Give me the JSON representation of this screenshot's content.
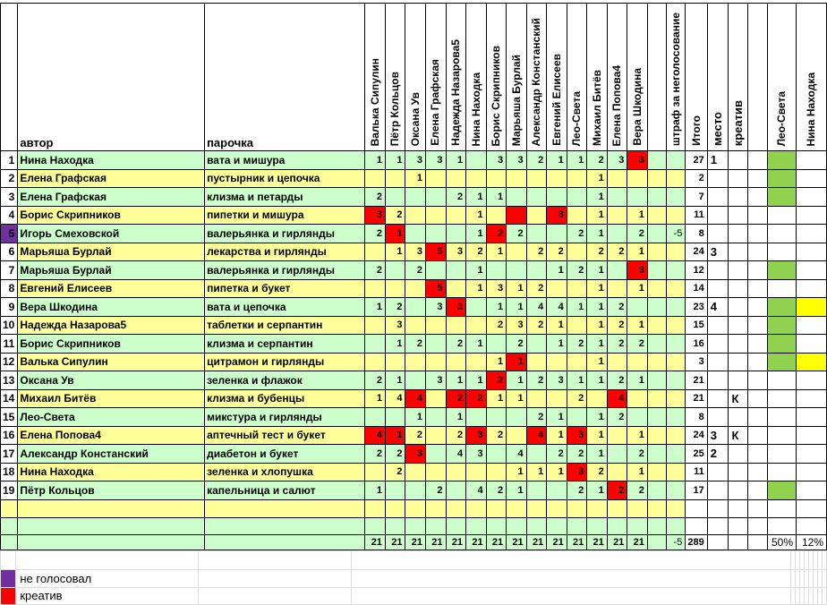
{
  "header": {
    "author_label": "автор",
    "pair_label": "парочка",
    "voters": [
      "Валька Сипулин",
      "Пётр Кольцов",
      "Оксана Ув",
      "Елена Графская",
      "Надежда Назарова5",
      "Нина Находка",
      "Борис Скрипников",
      "Марьяша Бурлай",
      "Александр Констанский",
      "Евгений Елисеев",
      "Лео-Света",
      "Михаил Битёв",
      "Елена Попова4",
      "Вера Шкодина"
    ],
    "penalty_label": "штраф за неголосование",
    "total_label": "Итого",
    "place_label": "место",
    "creative_label": "креатив",
    "leo_col_label": "Лео-Света",
    "nina_col_label": "Нина Находка"
  },
  "rows": [
    {
      "num": "1",
      "author": "Нина Находка",
      "pair": "вата и мишура",
      "votes": [
        "1",
        "1",
        "3",
        "3",
        "1",
        "",
        "3",
        "3",
        "2",
        "1",
        "1",
        "2",
        "3",
        "3"
      ],
      "red": [
        14
      ],
      "penalty": "",
      "total": "27",
      "place": "1",
      "creative": "",
      "leo": true,
      "nina": false,
      "num_purple": false
    },
    {
      "num": "2",
      "author": "Елена Графская",
      "pair": "пустырник и цепочка",
      "votes": [
        "",
        "",
        "1",
        "",
        "",
        "",
        "",
        "",
        "",
        "",
        "",
        "1",
        "",
        ""
      ],
      "red": [],
      "penalty": "",
      "total": "2",
      "place": "",
      "creative": "",
      "leo": true,
      "nina": false,
      "num_purple": false
    },
    {
      "num": "3",
      "author": "Елена Графская",
      "pair": "клизма и петарды",
      "votes": [
        "2",
        "",
        "",
        "",
        "2",
        "1",
        "1",
        "",
        "",
        "",
        "",
        "1",
        "",
        ""
      ],
      "red": [],
      "penalty": "",
      "total": "7",
      "place": "",
      "creative": "",
      "leo": true,
      "nina": false,
      "num_purple": false
    },
    {
      "num": "4",
      "author": "Борис Скрипников",
      "pair": "пипетки и мишура",
      "votes": [
        "3",
        "2",
        "",
        "",
        "",
        "1",
        "",
        "",
        "",
        "3",
        "",
        "1",
        "",
        "1"
      ],
      "red": [
        1,
        8,
        10
      ],
      "penalty": "",
      "total": "11",
      "place": "",
      "creative": "",
      "leo": false,
      "nina": false,
      "num_purple": false
    },
    {
      "num": "5",
      "author": "Игорь Смеховской",
      "pair": "валерьянка и гирлянды",
      "votes": [
        "2",
        "1",
        "",
        "",
        "",
        "1",
        "2",
        "2",
        "",
        "",
        "2",
        "1",
        "",
        "2"
      ],
      "red": [
        2,
        7
      ],
      "penalty": "-5",
      "total": "8",
      "place": "",
      "creative": "",
      "leo": false,
      "nina": false,
      "num_purple": true
    },
    {
      "num": "6",
      "author": "Марьяша Бурлай",
      "pair": "лекарства и гирлянды",
      "votes": [
        "",
        "1",
        "3",
        "5",
        "3",
        "2",
        "1",
        "",
        "2",
        "2",
        "",
        "2",
        "2",
        "1"
      ],
      "red": [
        4
      ],
      "penalty": "",
      "total": "24",
      "place": "3",
      "creative": "",
      "leo": false,
      "nina": false,
      "num_purple": false
    },
    {
      "num": "7",
      "author": "Марьяша Бурлай",
      "pair": "валерьянка и гирлянды",
      "votes": [
        "2",
        "",
        "2",
        "",
        "",
        "1",
        "",
        "",
        "",
        "1",
        "2",
        "1",
        "",
        "3"
      ],
      "red": [
        14
      ],
      "penalty": "",
      "total": "12",
      "place": "",
      "creative": "",
      "leo": true,
      "nina": false,
      "num_purple": false
    },
    {
      "num": "8",
      "author": "Евгений Елисеев",
      "pair": "пипетка и букет",
      "votes": [
        "",
        "",
        "",
        "5",
        "",
        "1",
        "3",
        "1",
        "2",
        "",
        "",
        "1",
        "",
        "1"
      ],
      "red": [
        4
      ],
      "penalty": "",
      "total": "14",
      "place": "",
      "creative": "",
      "leo": false,
      "nina": false,
      "num_purple": false
    },
    {
      "num": "9",
      "author": "Вера Шкодина",
      "pair": "вата и цепочка",
      "votes": [
        "1",
        "2",
        "",
        "3",
        "3",
        "",
        "1",
        "1",
        "4",
        "4",
        "1",
        "1",
        "2",
        ""
      ],
      "red": [
        5
      ],
      "penalty": "",
      "total": "23",
      "place": "4",
      "creative": "",
      "leo": true,
      "nina": true,
      "num_purple": false
    },
    {
      "num": "10",
      "author": "Надежда Назарова5",
      "pair": "таблетки и серпантин",
      "votes": [
        "",
        "3",
        "",
        "",
        "",
        "",
        "2",
        "3",
        "2",
        "1",
        "",
        "1",
        "2",
        "1"
      ],
      "red": [],
      "penalty": "",
      "total": "15",
      "place": "",
      "creative": "",
      "leo": true,
      "nina": false,
      "num_purple": false
    },
    {
      "num": "11",
      "author": "Борис Скрипников",
      "pair": "клизма и серпантин",
      "votes": [
        "",
        "1",
        "2",
        "",
        "2",
        "1",
        "",
        "2",
        "",
        "1",
        "2",
        "1",
        "2",
        "2"
      ],
      "red": [],
      "penalty": "",
      "total": "16",
      "place": "",
      "creative": "",
      "leo": true,
      "nina": false,
      "num_purple": false
    },
    {
      "num": "12",
      "author": "Валька Сипулин",
      "pair": "цитрамон и гирлянды",
      "votes": [
        "",
        "",
        "",
        "",
        "",
        "",
        "1",
        "1",
        "",
        "",
        "",
        "1",
        "",
        ""
      ],
      "red": [
        8
      ],
      "penalty": "",
      "total": "3",
      "place": "",
      "creative": "",
      "leo": true,
      "nina": true,
      "num_purple": false
    },
    {
      "num": "13",
      "author": "Оксана Ув",
      "pair": "зеленка и флажок",
      "votes": [
        "2",
        "1",
        "",
        "3",
        "1",
        "1",
        "2",
        "1",
        "2",
        "3",
        "1",
        "1",
        "2",
        "1"
      ],
      "red": [
        7
      ],
      "penalty": "",
      "total": "21",
      "place": "",
      "creative": "",
      "leo": false,
      "nina": false,
      "num_purple": false
    },
    {
      "num": "14",
      "author": "Михаил Битёв",
      "pair": "клизма и бубенцы",
      "votes": [
        "1",
        "4",
        "4",
        "",
        "2",
        "2",
        "1",
        "1",
        "",
        "",
        "2",
        "",
        "4",
        ""
      ],
      "red": [
        3,
        5,
        6,
        13
      ],
      "penalty": "",
      "total": "21",
      "place": "",
      "creative": "К",
      "leo": false,
      "nina": false,
      "num_purple": false
    },
    {
      "num": "15",
      "author": "Лео-Света",
      "pair": "микстура и гирлянды",
      "votes": [
        "",
        "",
        "1",
        "",
        "1",
        "",
        "",
        "",
        "2",
        "1",
        "",
        "1",
        "2",
        ""
      ],
      "red": [],
      "penalty": "",
      "total": "8",
      "place": "",
      "creative": "",
      "leo": false,
      "nina": false,
      "num_purple": false
    },
    {
      "num": "16",
      "author": "Елена Попова4",
      "pair": "аптечный тест и букет",
      "votes": [
        "4",
        "1",
        "2",
        "",
        "2",
        "3",
        "2",
        "",
        "4",
        "1",
        "3",
        "1",
        "",
        "1"
      ],
      "red": [
        1,
        2,
        6,
        9,
        11
      ],
      "penalty": "",
      "total": "24",
      "place": "3",
      "creative": "К",
      "leo": false,
      "nina": false,
      "num_purple": false
    },
    {
      "num": "17",
      "author": "Александр Констанский",
      "pair": "диабетон и букет",
      "votes": [
        "2",
        "2",
        "3",
        "",
        "4",
        "3",
        "",
        "4",
        "",
        "2",
        "2",
        "1",
        "",
        "2"
      ],
      "red": [
        3
      ],
      "penalty": "",
      "total": "25",
      "place": "2",
      "creative": "",
      "leo": false,
      "nina": false,
      "num_purple": false
    },
    {
      "num": "18",
      "author": "Нина Находка",
      "pair": "зеленка и хлопушка",
      "votes": [
        "",
        "2",
        "",
        "",
        "",
        "",
        "",
        "1",
        "1",
        "1",
        "3",
        "2",
        "",
        "1"
      ],
      "red": [
        11
      ],
      "penalty": "",
      "total": "11",
      "place": "",
      "creative": "",
      "leo": false,
      "nina": false,
      "num_purple": false
    },
    {
      "num": "19",
      "author": "Пётр Кольцов",
      "pair": "капельница и салют",
      "votes": [
        "1",
        "",
        "",
        "2",
        "",
        "4",
        "2",
        "1",
        "",
        "",
        "2",
        "1",
        "2",
        "2"
      ],
      "red": [
        13
      ],
      "penalty": "",
      "total": "17",
      "place": "",
      "creative": "",
      "leo": true,
      "nina": false,
      "num_purple": false
    }
  ],
  "totals_row": {
    "votes": [
      "21",
      "21",
      "21",
      "21",
      "21",
      "21",
      "21",
      "21",
      "21",
      "21",
      "21",
      "21",
      "21",
      "21"
    ],
    "penalty": "-5",
    "total": "289",
    "leo_pct": "50%",
    "nina_pct": "12%"
  },
  "legend": [
    {
      "color": "#7030A0",
      "label": "не голосовал"
    },
    {
      "color": "#FF0000",
      "label": "креатив"
    }
  ],
  "colors": {
    "row_green": "#CCFFCC",
    "row_yellow": "#FFFF99",
    "creative_red": "#FF0000",
    "no_vote_purple": "#7030A0",
    "leo_green": "#92D050",
    "nina_yellow": "#FFFF00",
    "grid_black": "#000000",
    "grid_light": "#DCDCDC"
  }
}
